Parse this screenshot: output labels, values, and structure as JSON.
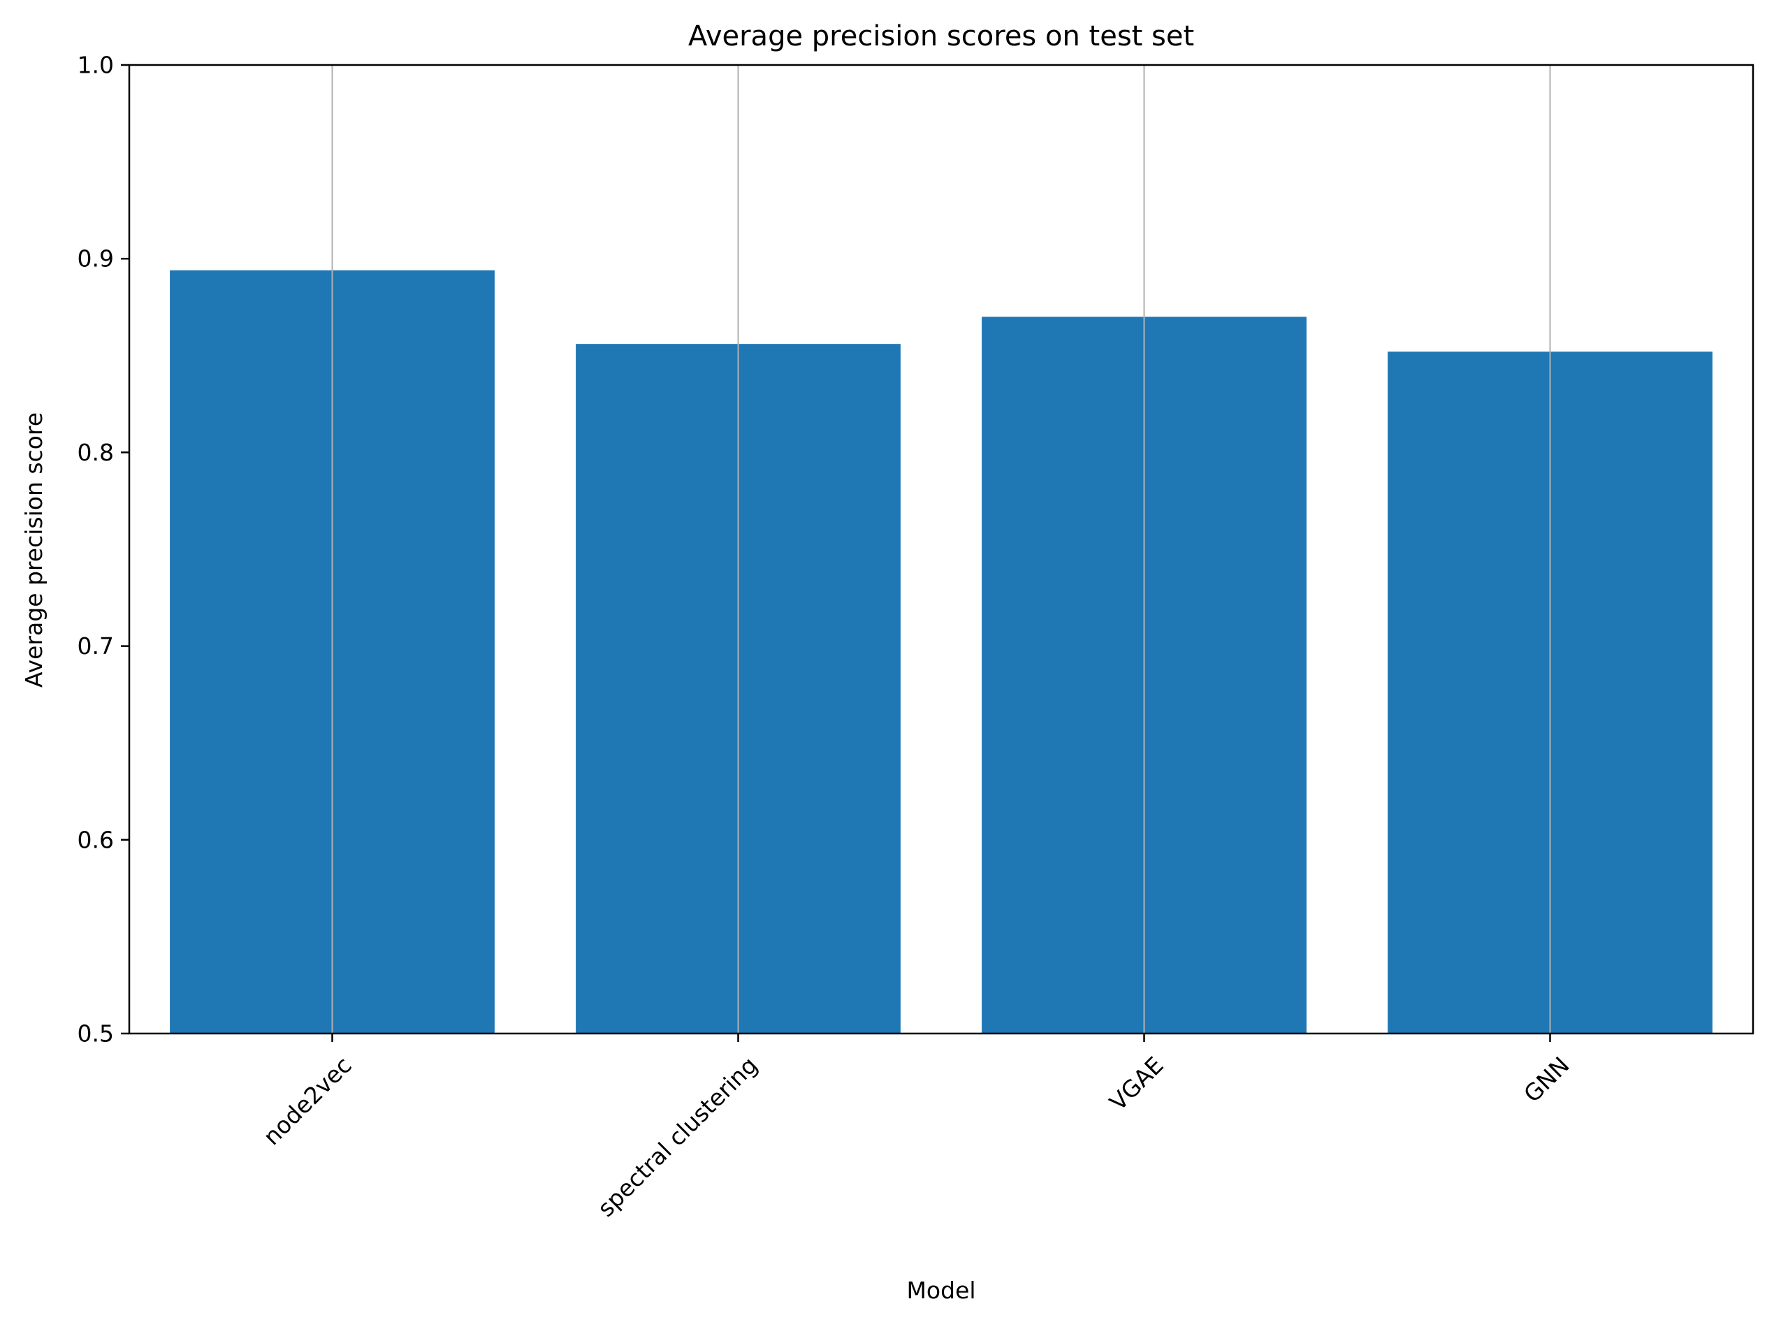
{
  "chart_data": {
    "type": "bar",
    "title": "Average precision scores on test set",
    "xlabel": "Model",
    "ylabel": "Average precision score",
    "categories": [
      "node2vec",
      "spectral clustering",
      "VGAE",
      "GNN"
    ],
    "values": [
      0.894,
      0.856,
      0.87,
      0.852
    ],
    "ylim": [
      0.5,
      1.0
    ],
    "yticks": [
      "0.5",
      "0.6",
      "0.7",
      "0.8",
      "0.9",
      "1.0"
    ],
    "grid": "x-axis vertical lines",
    "bar_color": "#1f77b4",
    "grid_color": "#b0b0b0",
    "x_tick_rotation_deg": 45
  }
}
